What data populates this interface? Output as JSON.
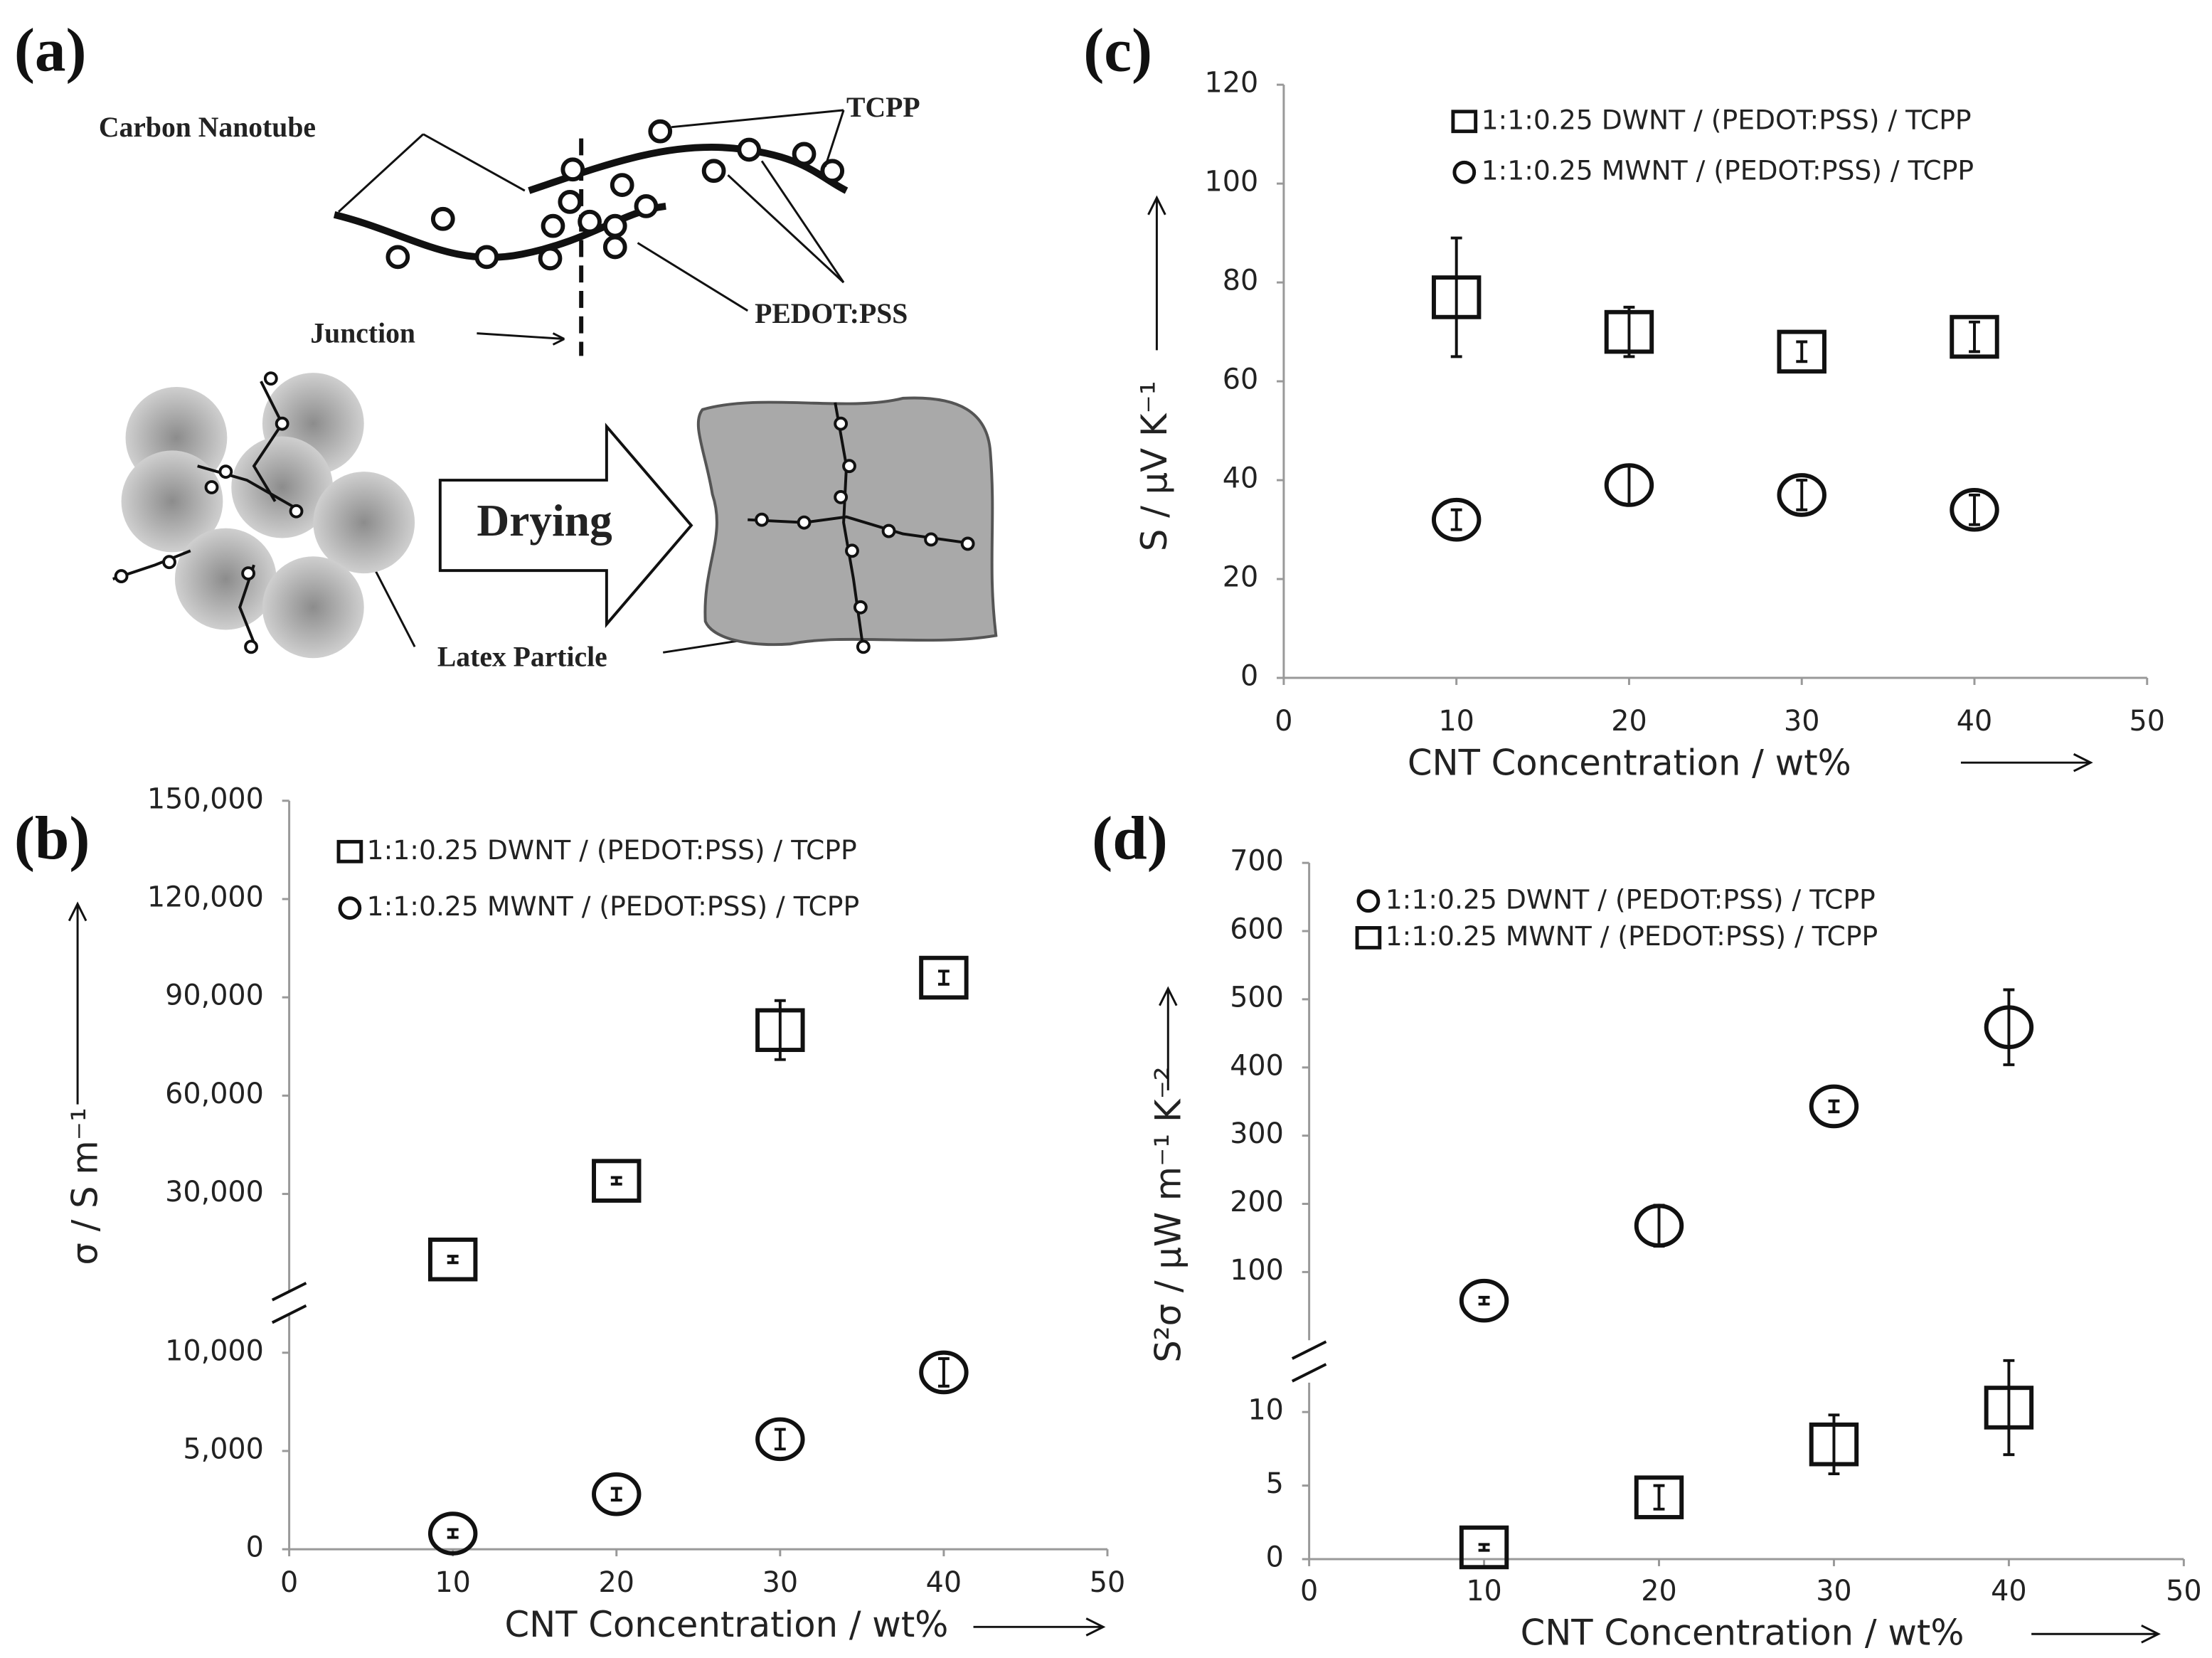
{
  "panel_labels": [
    "(a)",
    "(b)",
    "(c)",
    "(d)"
  ],
  "diagram": {
    "carbon_nanotube": "Carbon Nanotube",
    "tcpp": "TCPP",
    "junction": "Junction",
    "pedot_pss": "PEDOT:PSS",
    "drying": "Drying",
    "latex_particle": "Latex Particle"
  },
  "chart_data": [
    {
      "type": "scatter",
      "xlabel": "CNT Concentration / wt%",
      "ylabel": "σ / S m⁻¹",
      "x": [
        10,
        20,
        30,
        40
      ],
      "xlim": [
        0,
        50
      ],
      "xticks": [
        0,
        10,
        20,
        30,
        40,
        50
      ],
      "segments": [
        {
          "ylim": [
            0,
            12000
          ],
          "yticks": [
            0,
            {
              "value": 5000,
              "label": "5,000"
            },
            {
              "value": 10000,
              "label": "10,000"
            }
          ]
        },
        {
          "ylim": [
            0,
            150000
          ],
          "yticks": [
            {
              "value": 30000,
              "label": "30,000"
            },
            {
              "value": 60000,
              "label": "60,000"
            },
            {
              "value": 90000,
              "label": "90,000"
            },
            {
              "value": 120000,
              "label": "120,000"
            },
            {
              "value": 150000,
              "label": "150,000"
            }
          ]
        }
      ],
      "series": [
        {
          "name": "1:1:0.25 DWNT / (PEDOT:PSS) / TCPP",
          "marker": "square",
          "segment": 1,
          "values": [
            10000,
            34000,
            80000,
            96000
          ],
          "errors": [
            1000,
            1000,
            9000,
            2000
          ]
        },
        {
          "name": "1:1:0.25 MWNT / (PEDOT:PSS) / TCPP",
          "marker": "circle",
          "segment": 0,
          "values": [
            800,
            2800,
            5600,
            9000
          ],
          "errors": [
            200,
            300,
            500,
            700
          ]
        }
      ]
    },
    {
      "type": "scatter",
      "xlabel": "CNT Concentration / wt%",
      "ylabel": "S / µV K⁻¹",
      "x": [
        10,
        20,
        30,
        40
      ],
      "xlim": [
        0,
        50
      ],
      "xticks": [
        0,
        10,
        20,
        30,
        40,
        50
      ],
      "ylim": [
        0,
        120
      ],
      "yticks": [
        0,
        20,
        40,
        60,
        80,
        100,
        120
      ],
      "series": [
        {
          "name": "1:1:0.25 DWNT / (PEDOT:PSS) / TCPP",
          "marker": "square",
          "values": [
            77,
            70,
            66,
            69
          ],
          "errors": [
            12,
            5,
            2,
            3
          ]
        },
        {
          "name": "1:1:0.25 MWNT / (PEDOT:PSS) / TCPP",
          "marker": "circle",
          "values": [
            32,
            39,
            37,
            34
          ],
          "errors": [
            2,
            4,
            3,
            3
          ]
        }
      ]
    },
    {
      "type": "scatter",
      "xlabel": "CNT Concentration / wt%",
      "ylabel": "S²σ / µW m⁻¹ K⁻²",
      "x": [
        10,
        20,
        30,
        40
      ],
      "xlim": [
        0,
        50
      ],
      "xticks": [
        0,
        10,
        20,
        30,
        40,
        50
      ],
      "segments": [
        {
          "ylim": [
            0,
            12
          ],
          "yticks": [
            0,
            5,
            10
          ]
        },
        {
          "ylim": [
            0,
            700
          ],
          "yticks": [
            100,
            200,
            300,
            400,
            500,
            600,
            700
          ]
        }
      ],
      "series": [
        {
          "name": "1:1:0.25 DWNT / (PEDOT:PSS) / TCPP",
          "marker": "circle",
          "segment": 1,
          "values": [
            58,
            168,
            343,
            459
          ],
          "errors": [
            5,
            30,
            8,
            55
          ]
        },
        {
          "name": "1:1:0.25 MWNT / (PEDOT:PSS) / TCPP",
          "marker": "square",
          "segment": 0,
          "values": [
            0.8,
            4.2,
            7.8,
            10.3
          ],
          "errors": [
            0.2,
            0.8,
            2,
            3.2
          ]
        }
      ]
    }
  ]
}
